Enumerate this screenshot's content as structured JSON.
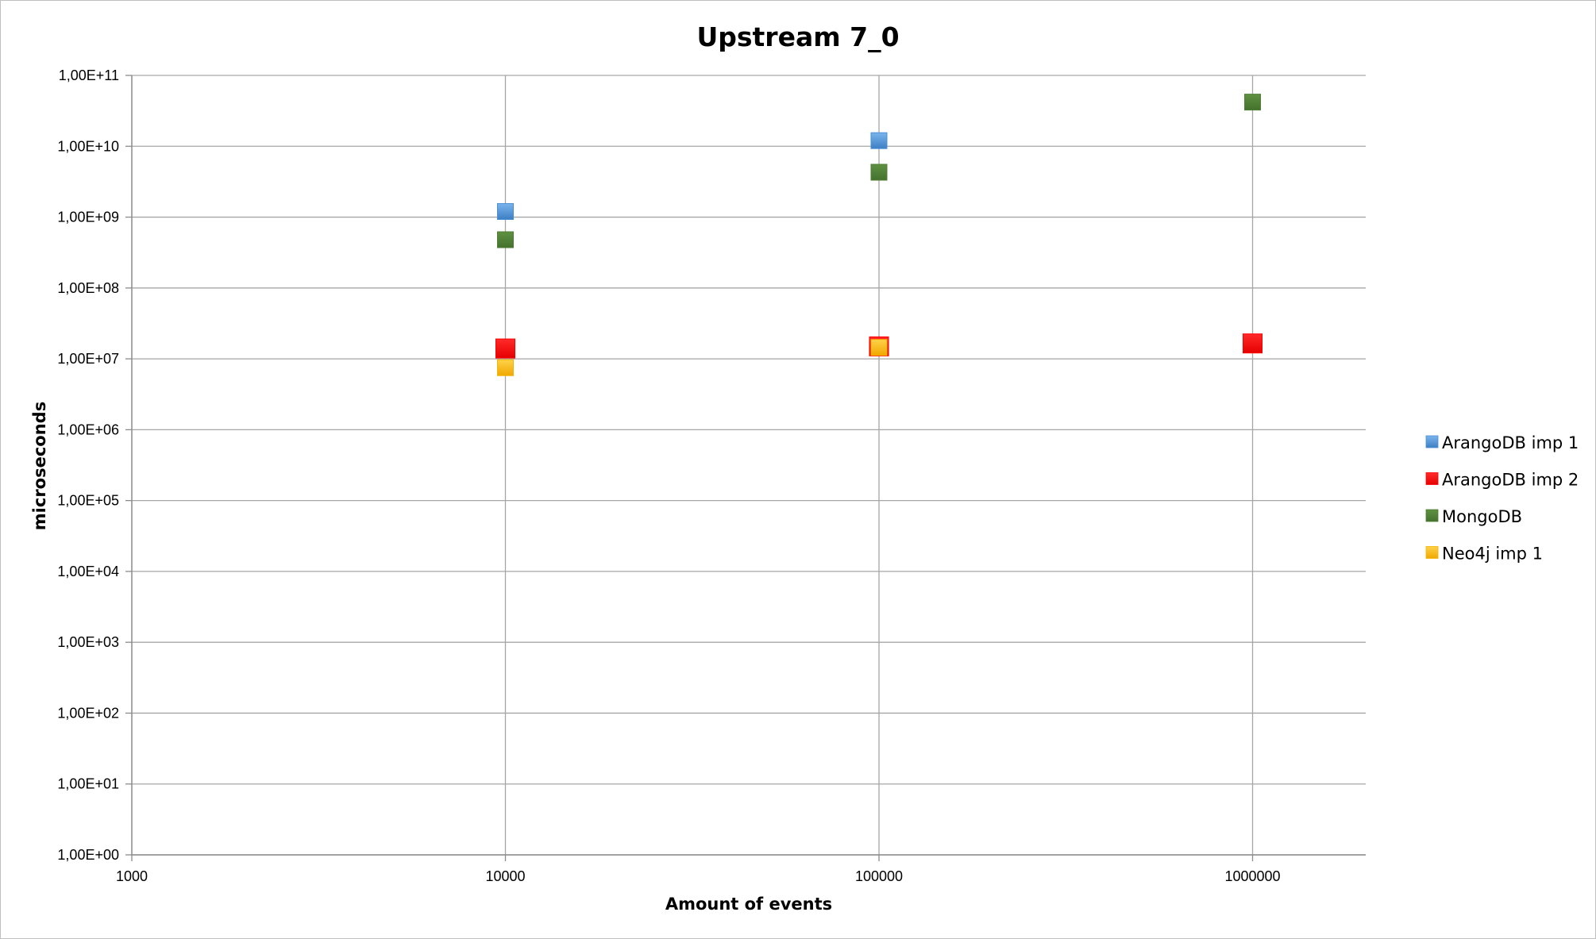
{
  "chart_data": {
    "type": "scatter",
    "title": "Upstream 7_0",
    "xlabel": "Amount of events",
    "ylabel": "microseconds",
    "x_scale": "log",
    "y_scale": "log",
    "xlim": [
      1000,
      2000000
    ],
    "ylim": [
      1,
      100000000000
    ],
    "x_ticks": [
      "1000",
      "10000",
      "100000",
      "1000000"
    ],
    "y_ticks": [
      "1,00E+00",
      "1,00E+01",
      "1,00E+02",
      "1,00E+03",
      "1,00E+04",
      "1,00E+05",
      "1,00E+06",
      "1,00E+07",
      "1,00E+08",
      "1,00E+09",
      "1,00E+10",
      "1,00E+11"
    ],
    "grid": true,
    "legend_position": "right",
    "series": [
      {
        "name": "ArangoDB imp 1",
        "color": "#4a8fd4",
        "marker": "square",
        "points": [
          {
            "x": 10000,
            "y": 1200000000
          },
          {
            "x": 100000,
            "y": 12000000000
          }
        ]
      },
      {
        "name": "ArangoDB imp 2",
        "color": "#ff0000",
        "marker": "square",
        "points": [
          {
            "x": 10000,
            "y": 14000000
          },
          {
            "x": 100000,
            "y": 15000000
          },
          {
            "x": 1000000,
            "y": 16500000
          }
        ]
      },
      {
        "name": "MongoDB",
        "color": "#4e7e34",
        "marker": "square",
        "points": [
          {
            "x": 10000,
            "y": 480000000
          },
          {
            "x": 100000,
            "y": 4300000000
          },
          {
            "x": 1000000,
            "y": 42000000000
          }
        ]
      },
      {
        "name": "Neo4j imp 1",
        "color": "#f5b400",
        "marker": "square",
        "points": [
          {
            "x": 10000,
            "y": 7500000
          },
          {
            "x": 100000,
            "y": 14500000
          }
        ]
      }
    ]
  }
}
